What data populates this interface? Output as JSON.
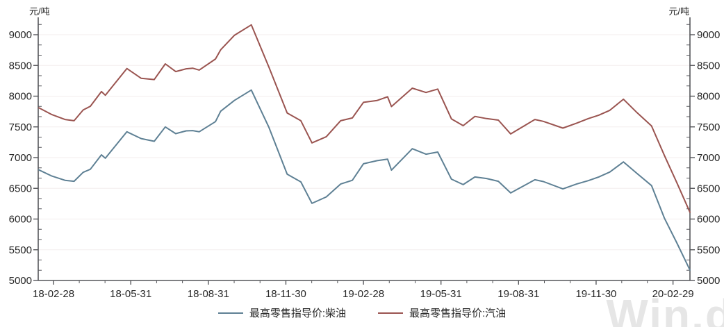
{
  "unit_left": "元/吨",
  "unit_right": "元/吨",
  "watermark": "Win.d",
  "axis": {
    "color": "#55565a",
    "label_color": "#262626",
    "grid_color": "#f3eeee"
  },
  "chart_data": {
    "type": "line",
    "title": "",
    "ylabel_left": "元/吨",
    "ylabel_right": "元/吨",
    "ylim": [
      5000,
      9350
    ],
    "y_ticks": [
      5000,
      5500,
      6000,
      6500,
      7000,
      7500,
      8000,
      8500,
      9000
    ],
    "x_tick_labels": [
      "18-02-28",
      "18-05-31",
      "18-08-31",
      "18-11-30",
      "19-02-28",
      "19-05-31",
      "19-08-31",
      "19-11-30",
      "20-02-29"
    ],
    "x_tick_pos": [
      0.0235,
      0.142,
      0.261,
      0.38,
      0.499,
      0.618,
      0.737,
      0.856,
      0.974
    ],
    "grid": "horizontal-major",
    "legend_position": "bottom-center",
    "series": [
      {
        "name": "最高零售指导价:柴油",
        "color": "#5e8094",
        "points": [
          [
            0.001,
            6800
          ],
          [
            0.021,
            6700
          ],
          [
            0.041,
            6630
          ],
          [
            0.055,
            6615
          ],
          [
            0.069,
            6760
          ],
          [
            0.08,
            6810
          ],
          [
            0.097,
            7045
          ],
          [
            0.103,
            6990
          ],
          [
            0.136,
            7420
          ],
          [
            0.158,
            7310
          ],
          [
            0.178,
            7265
          ],
          [
            0.195,
            7500
          ],
          [
            0.211,
            7390
          ],
          [
            0.227,
            7435
          ],
          [
            0.237,
            7440
          ],
          [
            0.247,
            7420
          ],
          [
            0.272,
            7585
          ],
          [
            0.28,
            7755
          ],
          [
            0.301,
            7930
          ],
          [
            0.327,
            8100
          ],
          [
            0.354,
            7490
          ],
          [
            0.382,
            6730
          ],
          [
            0.403,
            6605
          ],
          [
            0.42,
            6255
          ],
          [
            0.442,
            6360
          ],
          [
            0.464,
            6570
          ],
          [
            0.482,
            6630
          ],
          [
            0.499,
            6900
          ],
          [
            0.52,
            6950
          ],
          [
            0.536,
            6975
          ],
          [
            0.542,
            6795
          ],
          [
            0.574,
            7145
          ],
          [
            0.595,
            7055
          ],
          [
            0.613,
            7090
          ],
          [
            0.634,
            6650
          ],
          [
            0.652,
            6560
          ],
          [
            0.67,
            6685
          ],
          [
            0.688,
            6660
          ],
          [
            0.706,
            6615
          ],
          [
            0.725,
            6425
          ],
          [
            0.762,
            6640
          ],
          [
            0.775,
            6610
          ],
          [
            0.805,
            6490
          ],
          [
            0.826,
            6570
          ],
          [
            0.844,
            6625
          ],
          [
            0.86,
            6685
          ],
          [
            0.877,
            6765
          ],
          [
            0.898,
            6930
          ],
          [
            0.919,
            6740
          ],
          [
            0.941,
            6545
          ],
          [
            0.961,
            6010
          ],
          [
            0.98,
            5610
          ],
          [
            1.0,
            5170
          ]
        ]
      },
      {
        "name": "最高零售指导价:汽油",
        "color": "#9a5450",
        "points": [
          [
            0.001,
            7810
          ],
          [
            0.021,
            7700
          ],
          [
            0.041,
            7620
          ],
          [
            0.055,
            7600
          ],
          [
            0.069,
            7775
          ],
          [
            0.08,
            7835
          ],
          [
            0.097,
            8075
          ],
          [
            0.103,
            8015
          ],
          [
            0.136,
            8450
          ],
          [
            0.158,
            8290
          ],
          [
            0.178,
            8270
          ],
          [
            0.195,
            8525
          ],
          [
            0.211,
            8400
          ],
          [
            0.227,
            8445
          ],
          [
            0.237,
            8455
          ],
          [
            0.247,
            8425
          ],
          [
            0.272,
            8605
          ],
          [
            0.28,
            8755
          ],
          [
            0.301,
            8990
          ],
          [
            0.327,
            9160
          ],
          [
            0.354,
            8470
          ],
          [
            0.382,
            7725
          ],
          [
            0.403,
            7600
          ],
          [
            0.42,
            7240
          ],
          [
            0.442,
            7340
          ],
          [
            0.464,
            7600
          ],
          [
            0.482,
            7645
          ],
          [
            0.499,
            7900
          ],
          [
            0.52,
            7930
          ],
          [
            0.536,
            7990
          ],
          [
            0.542,
            7830
          ],
          [
            0.574,
            8130
          ],
          [
            0.595,
            8060
          ],
          [
            0.613,
            8115
          ],
          [
            0.634,
            7630
          ],
          [
            0.652,
            7520
          ],
          [
            0.67,
            7670
          ],
          [
            0.688,
            7635
          ],
          [
            0.706,
            7610
          ],
          [
            0.725,
            7385
          ],
          [
            0.762,
            7620
          ],
          [
            0.775,
            7590
          ],
          [
            0.805,
            7480
          ],
          [
            0.826,
            7560
          ],
          [
            0.844,
            7635
          ],
          [
            0.86,
            7690
          ],
          [
            0.877,
            7770
          ],
          [
            0.898,
            7950
          ],
          [
            0.919,
            7730
          ],
          [
            0.941,
            7515
          ],
          [
            0.961,
            7030
          ],
          [
            0.98,
            6590
          ],
          [
            1.0,
            6110
          ]
        ]
      }
    ]
  }
}
